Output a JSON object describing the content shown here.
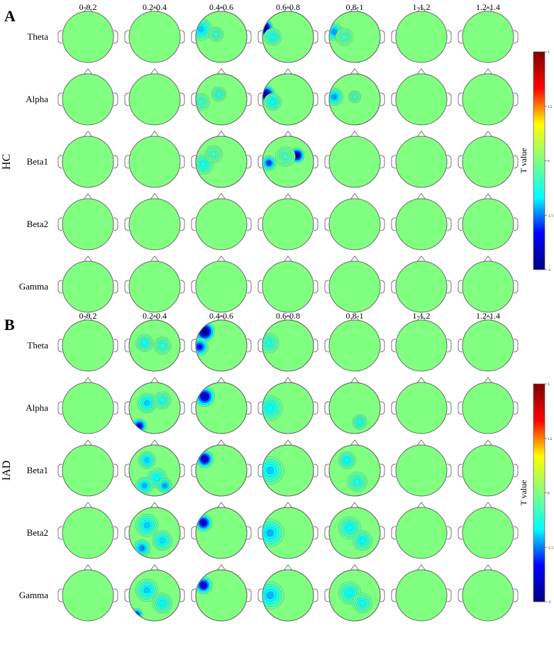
{
  "panels": [
    {
      "letter": "A",
      "group": "HC",
      "time_windows": [
        "0-0.2",
        "0.2-0.4",
        "0.4-0.6",
        "0.6-0.8",
        "0.8-1",
        "1-1.2",
        "1.2-1.4"
      ],
      "bands": [
        "Theta",
        "Alpha",
        "Beta1",
        "Beta2",
        "Gamma"
      ],
      "maps": [
        [
          null,
          null,
          {
            "blobs": [
              {
                "u": -0.8,
                "v": -0.3,
                "r": 0.4,
                "t": -1.2
              },
              {
                "u": -0.2,
                "v": -0.1,
                "r": 0.25,
                "t": -0.6
              }
            ]
          },
          {
            "blobs": [
              {
                "u": -0.92,
                "v": -0.35,
                "r": 0.3,
                "t": -3.0
              },
              {
                "u": -0.6,
                "v": 0.0,
                "r": 0.3,
                "t": -0.9
              }
            ]
          },
          {
            "blobs": [
              {
                "u": -0.8,
                "v": -0.2,
                "r": 0.3,
                "t": -1.4
              },
              {
                "u": -0.4,
                "v": 0.0,
                "r": 0.3,
                "t": -0.5
              }
            ]
          },
          null,
          null
        ],
        [
          null,
          null,
          {
            "blobs": [
              {
                "u": -0.1,
                "v": -0.2,
                "r": 0.25,
                "t": -0.7
              },
              {
                "u": -0.8,
                "v": 0.1,
                "r": 0.3,
                "t": -0.6
              }
            ]
          },
          {
            "blobs": [
              {
                "u": -0.85,
                "v": -0.2,
                "r": 0.3,
                "t": -2.8
              },
              {
                "u": -0.6,
                "v": 0.1,
                "r": 0.3,
                "t": -1.0
              }
            ]
          },
          {
            "blobs": [
              {
                "u": -0.8,
                "v": -0.1,
                "r": 0.3,
                "t": -1.4
              },
              {
                "u": 0.0,
                "v": -0.1,
                "r": 0.2,
                "t": -0.5
              }
            ]
          },
          null,
          null
        ],
        [
          null,
          null,
          {
            "blobs": [
              {
                "u": -0.7,
                "v": 0.1,
                "r": 0.35,
                "t": -0.9
              },
              {
                "u": -0.3,
                "v": -0.3,
                "r": 0.3,
                "t": -0.5
              }
            ]
          },
          {
            "blobs": [
              {
                "u": 0.35,
                "v": -0.25,
                "r": 0.25,
                "t": -2.8
              },
              {
                "u": -0.75,
                "v": 0.05,
                "r": 0.25,
                "t": -1.8
              },
              {
                "u": -0.1,
                "v": -0.2,
                "r": 0.35,
                "t": -0.5
              }
            ]
          },
          null,
          null,
          null
        ],
        [
          null,
          null,
          null,
          null,
          null,
          null,
          null
        ],
        [
          null,
          null,
          null,
          null,
          null,
          null,
          null
        ]
      ]
    },
    {
      "letter": "B",
      "group": "IAD",
      "time_windows": [
        "0-0.2",
        "0.2-0.4",
        "0.4-0.6",
        "0.6-0.8",
        "0.8-1",
        "1-1.2",
        "1.2-1.4"
      ],
      "bands": [
        "Theta",
        "Alpha",
        "Beta1",
        "Beta2",
        "Gamma"
      ],
      "maps": [
        [
          null,
          {
            "blobs": [
              {
                "u": -0.4,
                "v": -0.1,
                "r": 0.3,
                "t": -0.9
              },
              {
                "u": 0.3,
                "v": 0.0,
                "r": 0.3,
                "t": -0.7
              }
            ]
          },
          {
            "blobs": [
              {
                "u": -0.65,
                "v": -0.55,
                "r": 0.35,
                "t": -3.0
              },
              {
                "u": -0.85,
                "v": 0.05,
                "r": 0.3,
                "t": -2.0
              }
            ]
          },
          {
            "blobs": [
              {
                "u": -0.75,
                "v": -0.1,
                "r": 0.35,
                "t": -0.8
              }
            ]
          },
          null,
          null,
          null
        ],
        [
          null,
          {
            "blobs": [
              {
                "u": -0.3,
                "v": -0.2,
                "r": 0.35,
                "t": -1.2
              },
              {
                "u": -0.6,
                "v": 0.7,
                "r": 0.25,
                "t": -2.2
              },
              {
                "u": 0.3,
                "v": -0.3,
                "r": 0.3,
                "t": -0.8
              }
            ]
          },
          {
            "blobs": [
              {
                "u": -0.65,
                "v": -0.45,
                "r": 0.35,
                "t": -2.6
              }
            ]
          },
          {
            "blobs": [
              {
                "u": -0.7,
                "v": 0.0,
                "r": 0.45,
                "t": -1.0
              }
            ]
          },
          {
            "blobs": [
              {
                "u": 0.2,
                "v": 0.55,
                "r": 0.25,
                "t": -0.9
              }
            ]
          },
          null,
          null
        ],
        [
          null,
          {
            "blobs": [
              {
                "u": -0.3,
                "v": -0.4,
                "r": 0.3,
                "t": -1.2
              },
              {
                "u": 0.1,
                "v": 0.3,
                "r": 0.35,
                "t": -1.0
              },
              {
                "u": -0.4,
                "v": 0.6,
                "r": 0.3,
                "t": -1.3
              },
              {
                "u": 0.4,
                "v": 0.6,
                "r": 0.25,
                "t": -1.4
              }
            ]
          },
          {
            "blobs": [
              {
                "u": -0.65,
                "v": -0.45,
                "r": 0.3,
                "t": -2.6
              }
            ]
          },
          {
            "blobs": [
              {
                "u": -0.7,
                "v": 0.0,
                "r": 0.5,
                "t": -1.2
              }
            ]
          },
          {
            "blobs": [
              {
                "u": -0.3,
                "v": -0.4,
                "r": 0.3,
                "t": -1.0
              },
              {
                "u": 0.1,
                "v": 0.45,
                "r": 0.35,
                "t": -0.8
              }
            ]
          },
          null,
          null
        ],
        [
          null,
          {
            "blobs": [
              {
                "u": -0.3,
                "v": -0.3,
                "r": 0.4,
                "t": -1.2
              },
              {
                "u": 0.3,
                "v": 0.3,
                "r": 0.35,
                "t": -1.1
              },
              {
                "u": -0.5,
                "v": 0.6,
                "r": 0.3,
                "t": -1.5
              }
            ]
          },
          {
            "blobs": [
              {
                "u": -0.7,
                "v": -0.4,
                "r": 0.3,
                "t": -2.4
              }
            ]
          },
          {
            "blobs": [
              {
                "u": -0.7,
                "v": 0.0,
                "r": 0.5,
                "t": -1.3
              }
            ]
          },
          {
            "blobs": [
              {
                "u": -0.2,
                "v": -0.2,
                "r": 0.4,
                "t": -1.0
              },
              {
                "u": 0.3,
                "v": 0.3,
                "r": 0.35,
                "t": -1.0
              }
            ]
          },
          null,
          null
        ],
        [
          null,
          {
            "blobs": [
              {
                "u": -0.3,
                "v": -0.2,
                "r": 0.4,
                "t": -1.2
              },
              {
                "u": 0.3,
                "v": 0.3,
                "r": 0.35,
                "t": -1.0
              },
              {
                "u": -0.7,
                "v": 0.75,
                "r": 0.2,
                "t": -2.0
              }
            ]
          },
          {
            "blobs": [
              {
                "u": -0.7,
                "v": -0.4,
                "r": 0.3,
                "t": -2.4
              }
            ]
          },
          {
            "blobs": [
              {
                "u": -0.7,
                "v": 0.0,
                "r": 0.5,
                "t": -1.3
              }
            ]
          },
          {
            "blobs": [
              {
                "u": -0.2,
                "v": -0.1,
                "r": 0.4,
                "t": -1.0
              },
              {
                "u": 0.3,
                "v": 0.3,
                "r": 0.35,
                "t": -0.9
              }
            ]
          },
          null,
          null
        ]
      ]
    }
  ],
  "colorbar": {
    "label": "T value",
    "min": -3,
    "max": 3,
    "ticks": [
      "3",
      "1.5",
      "0",
      "-1.5",
      "-3"
    ],
    "colors": [
      "#800000",
      "#ff0000",
      "#ffff00",
      "#80ff80",
      "#00ffff",
      "#0000ff",
      "#000080"
    ]
  }
}
